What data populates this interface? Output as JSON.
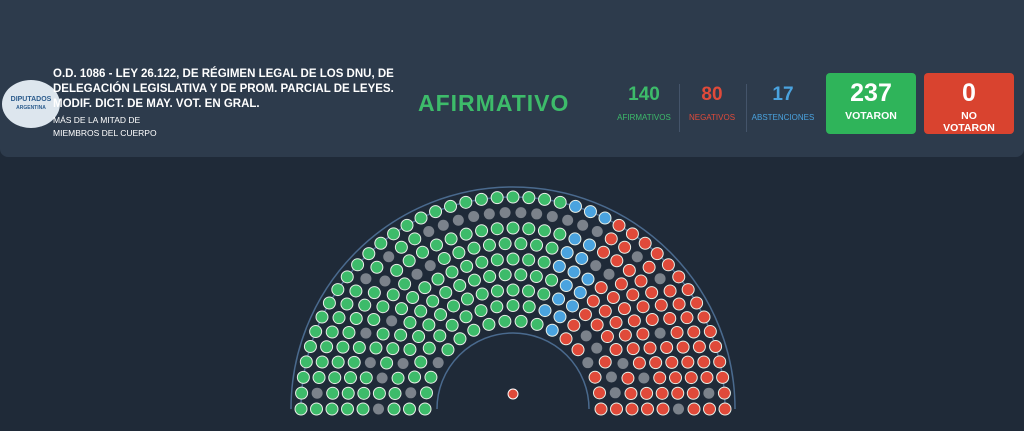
{
  "header": {
    "logo": {
      "line1": "DIPUTADOS",
      "line2": "ARGENTINA"
    },
    "title": "O.D. 1086 - LEY 26.122, DE RÉGIMEN LEGAL DE LOS DNU, DE DELEGACIÓN LEGISLATIVA Y DE PROM. PARCIAL DE LEYES. MODIF. DICT. DE MAY. VOT. EN GRAL.",
    "subtitle": "MÁS DE LA MITAD DE MIEMBROS DEL CUERPO",
    "result": "AFIRMATIVO"
  },
  "counts": [
    {
      "value": 140,
      "label": "AFIRMATIVOS"
    },
    {
      "value": 80,
      "label": "NEGATIVOS"
    },
    {
      "value": 17,
      "label": "ABSTENCIONES"
    }
  ],
  "totals": [
    {
      "value": 237,
      "label": "VOTARON"
    },
    {
      "value": 0,
      "label": "NO VOTARON"
    }
  ]
}
